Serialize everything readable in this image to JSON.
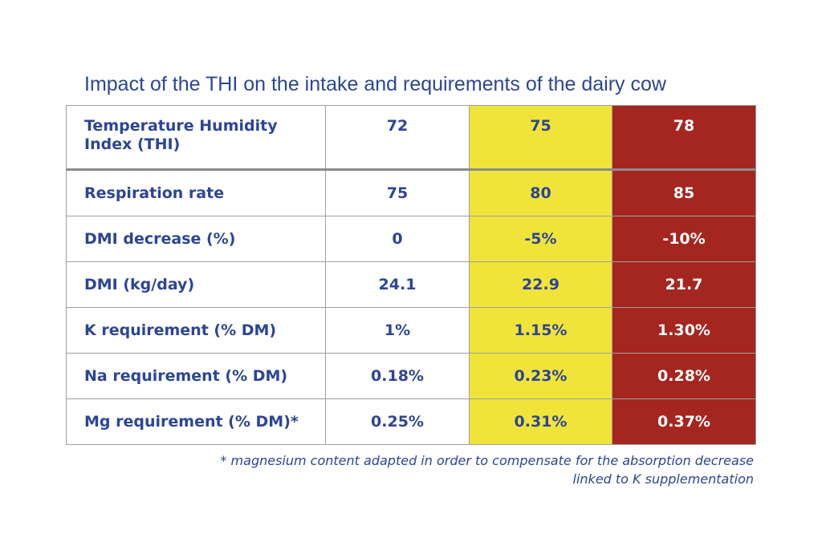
{
  "title": "Impact of the THI on the intake and requirements of the dairy cow",
  "colors": {
    "text": "#2c4596",
    "col_75_background": "#f0e43a",
    "col_78_background": "#a5261f",
    "col_78_text": "#ffffff"
  },
  "table": {
    "header": {
      "label": "Temperature Humidity Index (THI)",
      "values": [
        "72",
        "75",
        "78"
      ]
    },
    "rows": [
      {
        "label": "Respiration rate",
        "values": [
          "75",
          "80",
          "85"
        ]
      },
      {
        "label": "DMI decrease (%)",
        "values": [
          "0",
          "-5%",
          "-10%"
        ]
      },
      {
        "label": "DMI (kg/day)",
        "values": [
          "24.1",
          "22.9",
          "21.7"
        ]
      },
      {
        "label": "K requirement (% DM)",
        "values": [
          "1%",
          "1.15%",
          "1.30%"
        ]
      },
      {
        "label": "Na requirement (% DM)",
        "values": [
          "0.18%",
          "0.23%",
          "0.28%"
        ]
      },
      {
        "label": "Mg requirement (% DM)*",
        "values": [
          "0.25%",
          "0.31%",
          "0.37%"
        ]
      }
    ]
  },
  "footnote": {
    "line1": "* magnesium content adapted in order to compensate for the absorption decrease",
    "line2": "linked to K supplementation"
  }
}
